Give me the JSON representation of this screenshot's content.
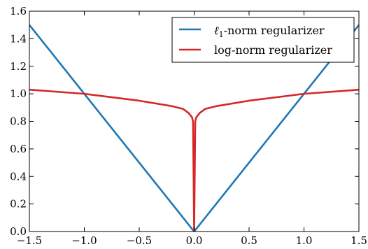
{
  "chart_data": {
    "type": "line",
    "title": "",
    "xlabel": "",
    "ylabel": "",
    "xlim": [
      -1.5,
      1.5
    ],
    "ylim": [
      0.0,
      1.6
    ],
    "x_ticks": [
      -1.5,
      -1.0,
      -0.5,
      0.0,
      0.5,
      1.0,
      1.5
    ],
    "x_tick_labels": [
      "−1.5",
      "−1.0",
      "−0.5",
      "0.0",
      "0.5",
      "1.0",
      "1.5"
    ],
    "y_ticks": [
      0.0,
      0.2,
      0.4,
      0.6,
      0.8,
      1.0,
      1.2,
      1.4,
      1.6
    ],
    "y_tick_labels": [
      "0.0",
      "0.2",
      "0.4",
      "0.6",
      "0.8",
      "1.0",
      "1.2",
      "1.4",
      "1.6"
    ],
    "grid": false,
    "legend_position": "top-right",
    "series": [
      {
        "name": "ℓ₁-norm regularizer",
        "legend_main": "ℓ",
        "legend_sub": "1",
        "legend_rest": "-norm regularizer",
        "color": "#1f77b4",
        "x": [
          -1.5,
          0.0,
          1.5
        ],
        "y": [
          1.5,
          0.0,
          1.5
        ]
      },
      {
        "name": "log-norm regularizer",
        "legend_main": "log-norm regularizer",
        "legend_sub": "",
        "legend_rest": "",
        "color": "#d62728",
        "x": [
          -1.5,
          -1.0,
          -0.5,
          -0.2,
          -0.1,
          -0.05,
          -0.02,
          -0.01,
          0.0,
          0.01,
          0.02,
          0.05,
          0.1,
          0.2,
          0.5,
          1.0,
          1.5
        ],
        "y": [
          1.03,
          1.0,
          0.95,
          0.91,
          0.89,
          0.86,
          0.83,
          0.8,
          0.0,
          0.8,
          0.83,
          0.86,
          0.89,
          0.91,
          0.95,
          1.0,
          1.03
        ]
      }
    ]
  }
}
